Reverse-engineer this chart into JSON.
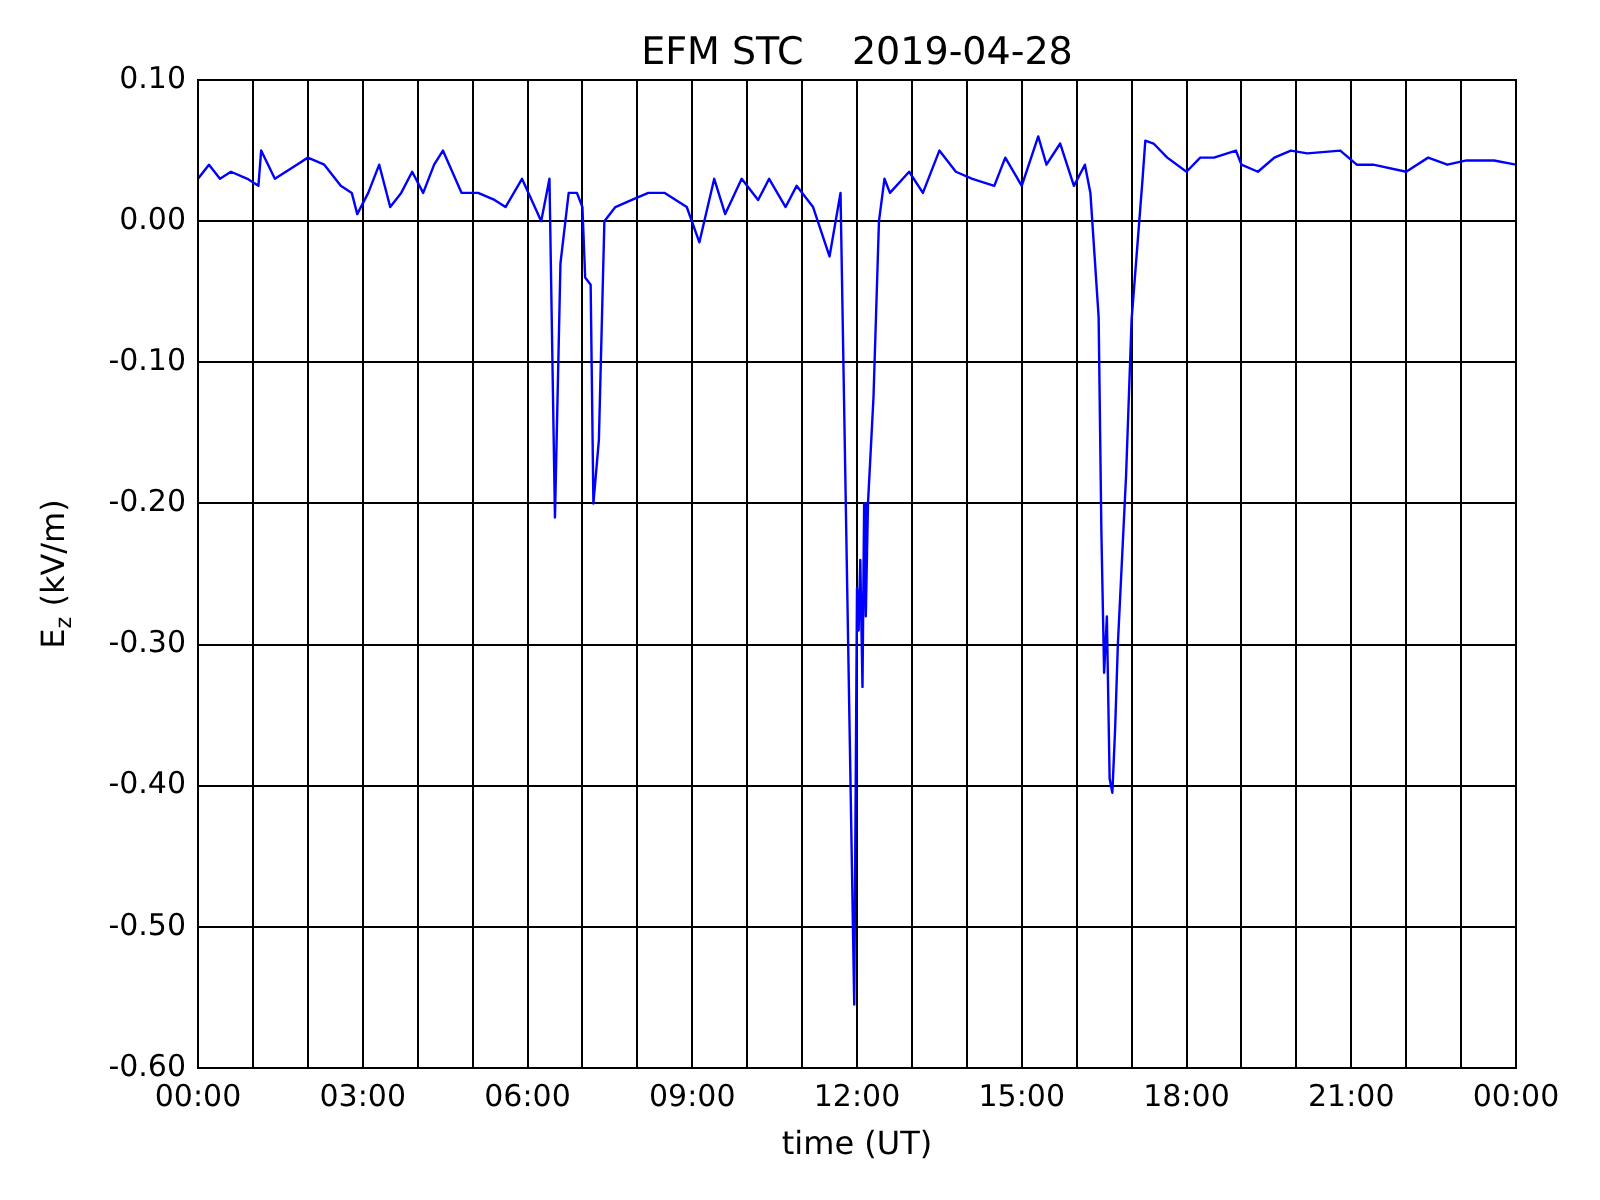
{
  "chart_data": {
    "type": "line",
    "title": "EFM STC    2019-04-28",
    "xlabel": "time (UT)",
    "ylabel": "E$_{z}$ (kV/m)",
    "xlim": [
      0,
      24
    ],
    "xticks": [
      {
        "value": 0,
        "label": "00:00"
      },
      {
        "value": 1,
        "label": null
      },
      {
        "value": 2,
        "label": null
      },
      {
        "value": 3,
        "label": "03:00"
      },
      {
        "value": 4,
        "label": null
      },
      {
        "value": 5,
        "label": null
      },
      {
        "value": 6,
        "label": "06:00"
      },
      {
        "value": 7,
        "label": null
      },
      {
        "value": 8,
        "label": null
      },
      {
        "value": 9,
        "label": "09:00"
      },
      {
        "value": 10,
        "label": null
      },
      {
        "value": 11,
        "label": null
      },
      {
        "value": 12,
        "label": "12:00"
      },
      {
        "value": 13,
        "label": null
      },
      {
        "value": 14,
        "label": null
      },
      {
        "value": 15,
        "label": "15:00"
      },
      {
        "value": 16,
        "label": null
      },
      {
        "value": 17,
        "label": null
      },
      {
        "value": 18,
        "label": "18:00"
      },
      {
        "value": 19,
        "label": null
      },
      {
        "value": 20,
        "label": null
      },
      {
        "value": 21,
        "label": "21:00"
      },
      {
        "value": 22,
        "label": null
      },
      {
        "value": 23,
        "label": null
      },
      {
        "value": 24,
        "label": "00:00"
      }
    ],
    "ylim": [
      -0.6,
      0.1
    ],
    "yticks": [
      {
        "value": -0.6,
        "label": "-0.60"
      },
      {
        "value": -0.5,
        "label": "-0.50"
      },
      {
        "value": -0.4,
        "label": "-0.40"
      },
      {
        "value": -0.3,
        "label": "-0.30"
      },
      {
        "value": -0.2,
        "label": "-0.20"
      },
      {
        "value": -0.1,
        "label": "-0.10"
      },
      {
        "value": 0,
        "label": "0.00"
      },
      {
        "value": 0.1,
        "label": "0.10"
      }
    ],
    "grid": true,
    "legend": false,
    "marker": "none",
    "line_style": "solid",
    "series": [
      {
        "color": "#0000ff",
        "x": [
          0,
          0.2,
          0.4,
          0.6,
          0.9,
          1.1,
          1.15,
          1.4,
          1.6,
          1.8,
          2.0,
          2.3,
          2.6,
          2.8,
          2.9,
          3.1,
          3.3,
          3.5,
          3.7,
          3.9,
          4.1,
          4.3,
          4.46,
          4.8,
          5.1,
          5.4,
          5.6,
          5.9,
          6.25,
          6.4,
          6.5,
          6.6,
          6.75,
          6.9,
          7.0,
          7.05,
          7.15,
          7.2,
          7.3,
          7.4,
          7.6,
          7.9,
          8.2,
          8.5,
          8.9,
          9.13,
          9.4,
          9.6,
          9.9,
          10.2,
          10.4,
          10.7,
          10.9,
          11.2,
          11.5,
          11.7,
          11.95,
          12.0,
          12.03,
          12.06,
          12.1,
          12.13,
          12.16,
          12.2,
          12.3,
          12.4,
          12.5,
          12.6,
          12.95,
          13.2,
          13.5,
          13.8,
          14.1,
          14.5,
          14.7,
          15.0,
          15.3,
          15.45,
          15.7,
          15.95,
          16.15,
          16.25,
          16.4,
          16.45,
          16.5,
          16.55,
          16.6,
          16.65,
          16.7,
          16.75,
          16.9,
          17.0,
          17.2,
          17.25,
          17.4,
          17.65,
          18.0,
          18.25,
          18.5,
          18.9,
          19.0,
          19.3,
          19.6,
          19.9,
          20.2,
          20.8,
          21.1,
          21.4,
          22.0,
          22.4,
          22.75,
          23.1,
          23.6,
          24.0
        ],
        "values": [
          0.03,
          0.04,
          0.03,
          0.035,
          0.03,
          0.025,
          0.05,
          0.03,
          0.035,
          0.04,
          0.045,
          0.04,
          0.025,
          0.02,
          0.005,
          0.02,
          0.04,
          0.01,
          0.02,
          0.035,
          0.02,
          0.04,
          0.05,
          0.02,
          0.02,
          0.015,
          0.01,
          0.03,
          0.0,
          0.03,
          -0.21,
          -0.03,
          0.02,
          0.02,
          0.01,
          -0.04,
          -0.045,
          -0.2,
          -0.155,
          0.0,
          0.01,
          0.015,
          0.02,
          0.02,
          0.01,
          -0.015,
          0.03,
          0.005,
          0.03,
          0.015,
          0.03,
          0.01,
          0.025,
          0.01,
          -0.025,
          0.02,
          -0.555,
          -0.26,
          -0.29,
          -0.24,
          -0.33,
          -0.2,
          -0.28,
          -0.2,
          -0.125,
          0.0,
          0.03,
          0.02,
          0.035,
          0.02,
          0.05,
          0.035,
          0.03,
          0.025,
          0.045,
          0.025,
          0.06,
          0.04,
          0.055,
          0.025,
          0.04,
          0.02,
          -0.068,
          -0.22,
          -0.32,
          -0.28,
          -0.395,
          -0.405,
          -0.36,
          -0.3,
          -0.18,
          -0.07,
          0.03,
          0.057,
          0.055,
          0.045,
          0.035,
          0.045,
          0.045,
          0.05,
          0.04,
          0.035,
          0.045,
          0.05,
          0.048,
          0.05,
          0.04,
          0.04,
          0.035,
          0.045,
          0.04,
          0.043,
          0.043,
          0.04
        ]
      }
    ]
  }
}
